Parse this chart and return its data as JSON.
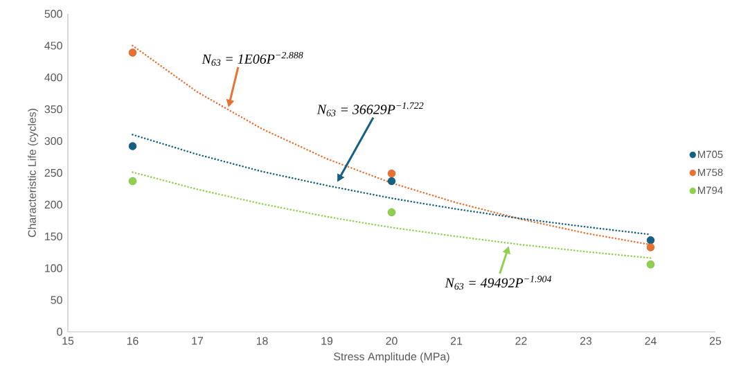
{
  "chart_data": {
    "type": "scatter",
    "xlabel": "Stress Amplitude (MPa)",
    "ylabel": "Characteristic Life (cycles)",
    "xlim": [
      15,
      25
    ],
    "xticks": [
      15,
      16,
      17,
      18,
      19,
      20,
      21,
      22,
      23,
      24,
      25
    ],
    "ylim": [
      0,
      500
    ],
    "yticks": [
      0,
      50,
      100,
      150,
      200,
      250,
      300,
      350,
      400,
      450,
      500
    ],
    "grid": false,
    "legend": "right",
    "marker": "circle",
    "series": [
      {
        "name": "M705",
        "color": "#156082",
        "x": [
          16,
          20,
          24
        ],
        "values": [
          292,
          237,
          144
        ]
      },
      {
        "name": "M758",
        "color": "#e97132",
        "x": [
          16,
          20,
          24
        ],
        "values": [
          439,
          249,
          133
        ]
      },
      {
        "name": "M794",
        "color": "#8fd14f",
        "x": [
          16,
          20,
          24
        ],
        "values": [
          237,
          188,
          106
        ]
      },
      {
        "type": "line",
        "marker": "none",
        "line_style": "dotted",
        "color": "#e97132",
        "x": [
          16,
          17,
          18,
          19,
          20,
          21,
          22,
          23,
          24
        ],
        "values": [
          450,
          377,
          319,
          272,
          234,
          203,
          177,
          155,
          137
        ]
      },
      {
        "type": "line",
        "marker": "none",
        "line_style": "dotted",
        "color": "#156082",
        "x": [
          16,
          17,
          18,
          19,
          20,
          21,
          22,
          23,
          24
        ],
        "values": [
          310,
          279,
          252,
          230,
          210,
          193,
          178,
          165,
          153
        ]
      },
      {
        "type": "line",
        "marker": "none",
        "line_style": "dotted",
        "color": "#8fd14f",
        "x": [
          16,
          17,
          18,
          19,
          20,
          21,
          22,
          23,
          24
        ],
        "values": [
          251,
          224,
          201,
          181,
          164,
          150,
          137,
          126,
          116
        ]
      }
    ],
    "annotations": [
      "N$_{63}$ = 1E06P$^{−2.888}$",
      "N$_{63}$ = 36629P$^{−1.722}$",
      {
        "text": "N$_{63}$ = 49492P$^{−1.904}$",
        "x": 21.81,
        "y": 135
      }
    ]
  }
}
